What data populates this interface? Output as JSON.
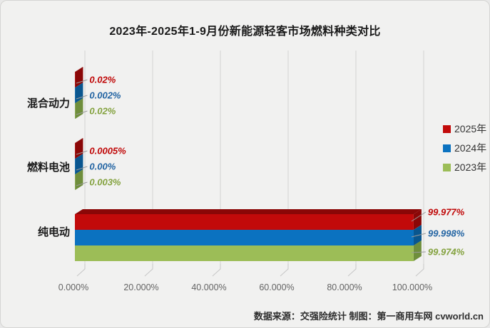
{
  "title": "2023年-2025年1-9月份新能源轻客市场燃料种类对比",
  "footer": "数据来源：交强险统计 制图：第一商用车网 cvworld.cn",
  "chart_data": {
    "type": "bar",
    "orientation": "horizontal",
    "title": "2023年-2025年1-9月份新能源轻客市场燃料种类对比",
    "categories": [
      "混合动力",
      "燃料电池",
      "纯电动"
    ],
    "series": [
      {
        "name": "2025年",
        "color": "#c20a0a",
        "dark_color": "#8a0707",
        "label_color": "#c00808",
        "values": [
          0.02,
          0.0005,
          99.977
        ],
        "labels": [
          "0.02%",
          "0.0005%",
          "99.977%"
        ]
      },
      {
        "name": "2024年",
        "color": "#0b72c0",
        "dark_color": "#0a568f",
        "label_color": "#2465a3",
        "values": [
          0.002,
          0.0,
          99.998
        ],
        "labels": [
          "0.002%",
          "0.00%",
          "99.998%"
        ]
      },
      {
        "name": "2023年",
        "color": "#9cbd57",
        "dark_color": "#6f8e3c",
        "label_color": "#84a23f",
        "values": [
          0.02,
          0.003,
          99.974
        ],
        "labels": [
          "0.02%",
          "0.003%",
          "99.974%"
        ]
      }
    ],
    "x_ticks": [
      "0.000%",
      "20.000%",
      "40.000%",
      "60.000%",
      "80.000%",
      "100.000%"
    ],
    "xlim": [
      0,
      100
    ],
    "xlabel": "",
    "ylabel": "",
    "grid": true,
    "legend_position": "right",
    "style": {
      "background": "#f1f1f0",
      "gridline_color": "#d2d2d2",
      "tick_label_color": "#646464"
    }
  }
}
